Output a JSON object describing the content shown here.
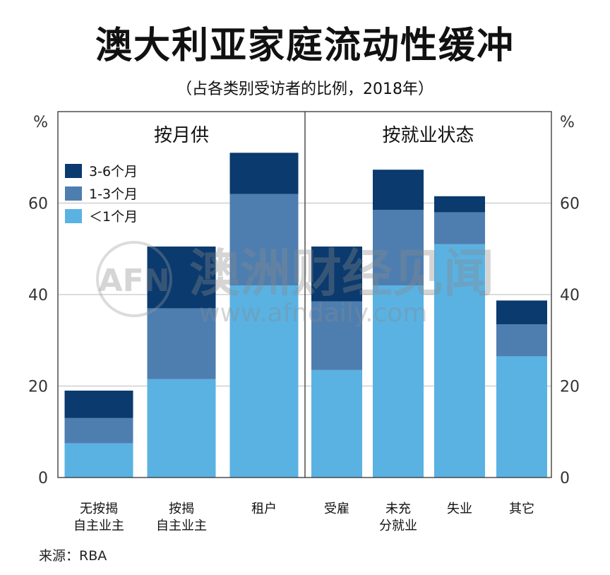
{
  "title": "澳大利亚家庭流动性缓冲",
  "subtitle": "（占各类别受访者的比例，2018年）",
  "source": "来源：RBA",
  "watermark": {
    "logo": "AFN",
    "name": "澳洲财经见闻",
    "url": "www.afndaily.com"
  },
  "colors": {
    "lt1": "#5ab2e2",
    "m1_3": "#4e7eb0",
    "m3_6": "#0a3a6e",
    "grid": "#c8c8c8"
  },
  "chart_data": {
    "type": "bar",
    "stacked": true,
    "unit_label": "%",
    "ylim": [
      0,
      80
    ],
    "yticks": [
      0,
      20,
      40,
      60
    ],
    "grid": true,
    "legend_position": "top-left",
    "panels": [
      {
        "label": "按月供",
        "categories": [
          "无按揭自主业主",
          "按揭自主业主",
          "租户"
        ],
        "category_lines": [
          [
            "无按揭",
            "自主业主"
          ],
          [
            "按揭",
            "自主业主"
          ],
          [
            "租户"
          ]
        ]
      },
      {
        "label": "按就业状态",
        "categories": [
          "受雇",
          "未充分就业",
          "失业",
          "其它"
        ],
        "category_lines": [
          [
            "受雇"
          ],
          [
            "未充",
            "分就业"
          ],
          [
            "失业"
          ],
          [
            "其它"
          ]
        ]
      }
    ],
    "categories": [
      "无按揭自主业主",
      "按揭自主业主",
      "租户",
      "受雇",
      "未充分就业",
      "失业",
      "其它"
    ],
    "series": [
      {
        "name": "＜1个月",
        "color_key": "lt1",
        "values": [
          7.5,
          21.5,
          42,
          23.5,
          42,
          51,
          26.5
        ]
      },
      {
        "name": "1-3个月",
        "color_key": "m1_3",
        "values": [
          5.5,
          15.5,
          20,
          15,
          16.5,
          7,
          7
        ]
      },
      {
        "name": "3-6个月",
        "color_key": "m3_6",
        "values": [
          6,
          13.5,
          9,
          12,
          8.8,
          3.5,
          5.2
        ]
      }
    ],
    "legend_order": [
      "3-6个月",
      "1-3个月",
      "＜1个月"
    ]
  }
}
